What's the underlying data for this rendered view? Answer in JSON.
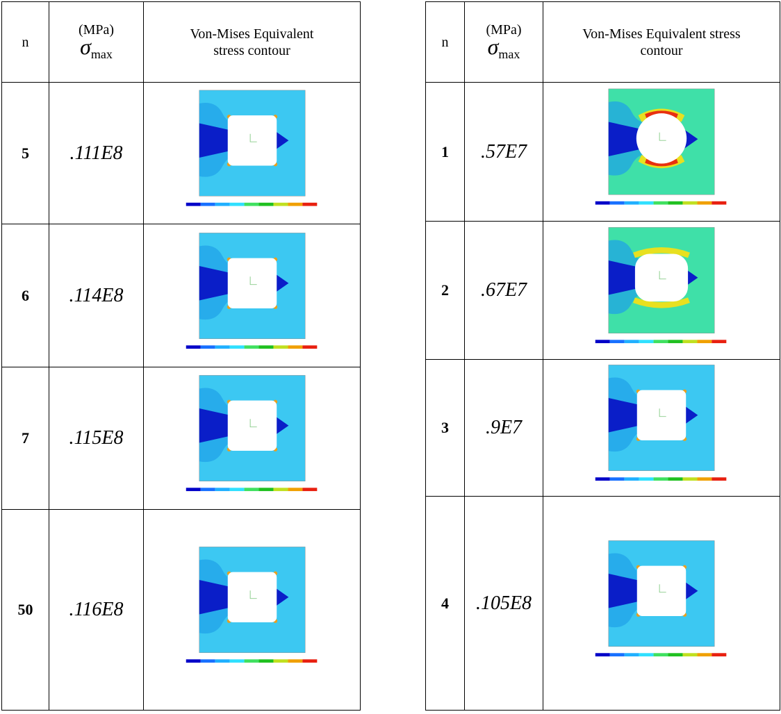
{
  "left_table": {
    "header": {
      "n": "n",
      "unit": "(MPa)",
      "symbol": "σ",
      "subscript": "max",
      "contour": [
        "Von-Mises Equivalent",
        "stress contour"
      ]
    },
    "rows": [
      {
        "n": "5",
        "sigma": ".111E8"
      },
      {
        "n": "6",
        "sigma": ".114E8"
      },
      {
        "n": "7",
        "sigma": ".115E8"
      },
      {
        "n": "50",
        "sigma": ".116E8"
      }
    ]
  },
  "right_table": {
    "header": {
      "n": "n",
      "unit": "(MPa)",
      "symbol": "σ",
      "subscript": "max",
      "contour": [
        "Von-Mises Equivalent stress",
        "contour"
      ]
    },
    "rows": [
      {
        "n": "1",
        "sigma": ".57E7"
      },
      {
        "n": "2",
        "sigma": ".67E7"
      },
      {
        "n": "3",
        "sigma": ".9E7"
      },
      {
        "n": "4",
        "sigma": ".105E8"
      }
    ]
  }
}
